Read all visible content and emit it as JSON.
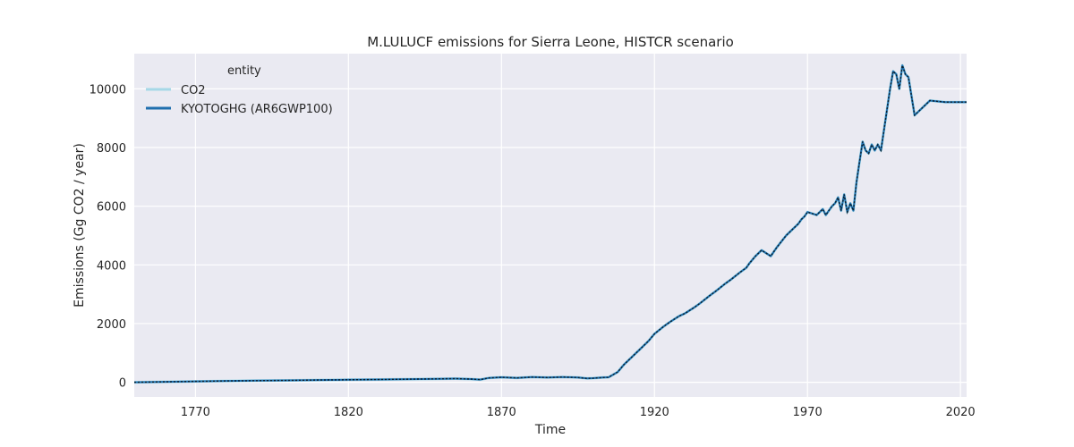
{
  "chart_data": {
    "type": "line",
    "title": "M.LULUCF emissions for Sierra Leone, HISTCR scenario",
    "xlabel": "Time",
    "ylabel": "Emissions (Gg CO2 / year)",
    "xlim": [
      1750,
      2022
    ],
    "ylim": [
      -500,
      11200
    ],
    "xticks": [
      1770,
      1820,
      1870,
      1920,
      1970,
      2020
    ],
    "yticks": [
      0,
      2000,
      4000,
      6000,
      8000,
      10000
    ],
    "grid": true,
    "legend": {
      "title": "entity",
      "position": "top-left"
    },
    "series": [
      {
        "name": "CO2",
        "color": "#a6d8e7",
        "style": "solid",
        "x": [
          1750,
          1760,
          1770,
          1780,
          1790,
          1800,
          1810,
          1820,
          1830,
          1840,
          1850,
          1855,
          1860,
          1863,
          1866,
          1870,
          1875,
          1880,
          1885,
          1890,
          1895,
          1898,
          1900,
          1903,
          1905,
          1908,
          1910,
          1913,
          1915,
          1918,
          1920,
          1923,
          1925,
          1928,
          1930,
          1933,
          1935,
          1938,
          1940,
          1943,
          1945,
          1948,
          1950,
          1951,
          1953,
          1955,
          1958,
          1960,
          1963,
          1965,
          1967,
          1968,
          1969,
          1970,
          1973,
          1975,
          1976,
          1977,
          1978,
          1979,
          1980,
          1981,
          1982,
          1983,
          1984,
          1985,
          1986,
          1987,
          1988,
          1989,
          1990,
          1991,
          1992,
          1993,
          1994,
          1995,
          1996,
          1997,
          1998,
          1999,
          2000,
          2001,
          2002,
          2003,
          2005,
          2010,
          2015,
          2020,
          2022
        ],
        "values": [
          0,
          15,
          30,
          45,
          55,
          65,
          75,
          85,
          95,
          105,
          120,
          125,
          110,
          90,
          150,
          170,
          150,
          175,
          160,
          180,
          160,
          130,
          140,
          160,
          170,
          350,
          600,
          900,
          1100,
          1400,
          1650,
          1900,
          2050,
          2250,
          2350,
          2550,
          2700,
          2950,
          3100,
          3350,
          3500,
          3750,
          3900,
          4050,
          4300,
          4500,
          4300,
          4600,
          5000,
          5200,
          5400,
          5550,
          5650,
          5800,
          5700,
          5900,
          5700,
          5850,
          6000,
          6100,
          6300,
          5850,
          6400,
          5800,
          6100,
          5850,
          6800,
          7500,
          8200,
          7900,
          7800,
          8100,
          7900,
          8100,
          7900,
          8600,
          9300,
          10000,
          10600,
          10500,
          10000,
          10800,
          10500,
          10400,
          9100,
          9600,
          9550,
          9550,
          9550
        ]
      },
      {
        "name": "KYOTOGHG (AR6GWP100)",
        "color": "#1f6fae",
        "style": "solid",
        "x": [
          1750,
          1760,
          1770,
          1780,
          1790,
          1800,
          1810,
          1820,
          1830,
          1840,
          1850,
          1855,
          1860,
          1863,
          1866,
          1870,
          1875,
          1880,
          1885,
          1890,
          1895,
          1898,
          1900,
          1903,
          1905,
          1908,
          1910,
          1913,
          1915,
          1918,
          1920,
          1923,
          1925,
          1928,
          1930,
          1933,
          1935,
          1938,
          1940,
          1943,
          1945,
          1948,
          1950,
          1951,
          1953,
          1955,
          1958,
          1960,
          1963,
          1965,
          1967,
          1968,
          1969,
          1970,
          1973,
          1975,
          1976,
          1977,
          1978,
          1979,
          1980,
          1981,
          1982,
          1983,
          1984,
          1985,
          1986,
          1987,
          1988,
          1989,
          1990,
          1991,
          1992,
          1993,
          1994,
          1995,
          1996,
          1997,
          1998,
          1999,
          2000,
          2001,
          2002,
          2003,
          2005,
          2010,
          2015,
          2020,
          2022
        ],
        "values": [
          0,
          15,
          30,
          45,
          55,
          65,
          75,
          85,
          95,
          105,
          120,
          125,
          110,
          90,
          150,
          170,
          150,
          175,
          160,
          180,
          160,
          130,
          140,
          160,
          170,
          350,
          600,
          900,
          1100,
          1400,
          1650,
          1900,
          2050,
          2250,
          2350,
          2550,
          2700,
          2950,
          3100,
          3350,
          3500,
          3750,
          3900,
          4050,
          4300,
          4500,
          4300,
          4600,
          5000,
          5200,
          5400,
          5550,
          5650,
          5800,
          5700,
          5900,
          5700,
          5850,
          6000,
          6100,
          6300,
          5850,
          6400,
          5800,
          6100,
          5850,
          6800,
          7500,
          8200,
          7900,
          7800,
          8100,
          7900,
          8100,
          7900,
          8600,
          9300,
          10000,
          10600,
          10500,
          10000,
          10800,
          10500,
          10400,
          9100,
          9600,
          9550,
          9550,
          9550
        ]
      }
    ]
  }
}
